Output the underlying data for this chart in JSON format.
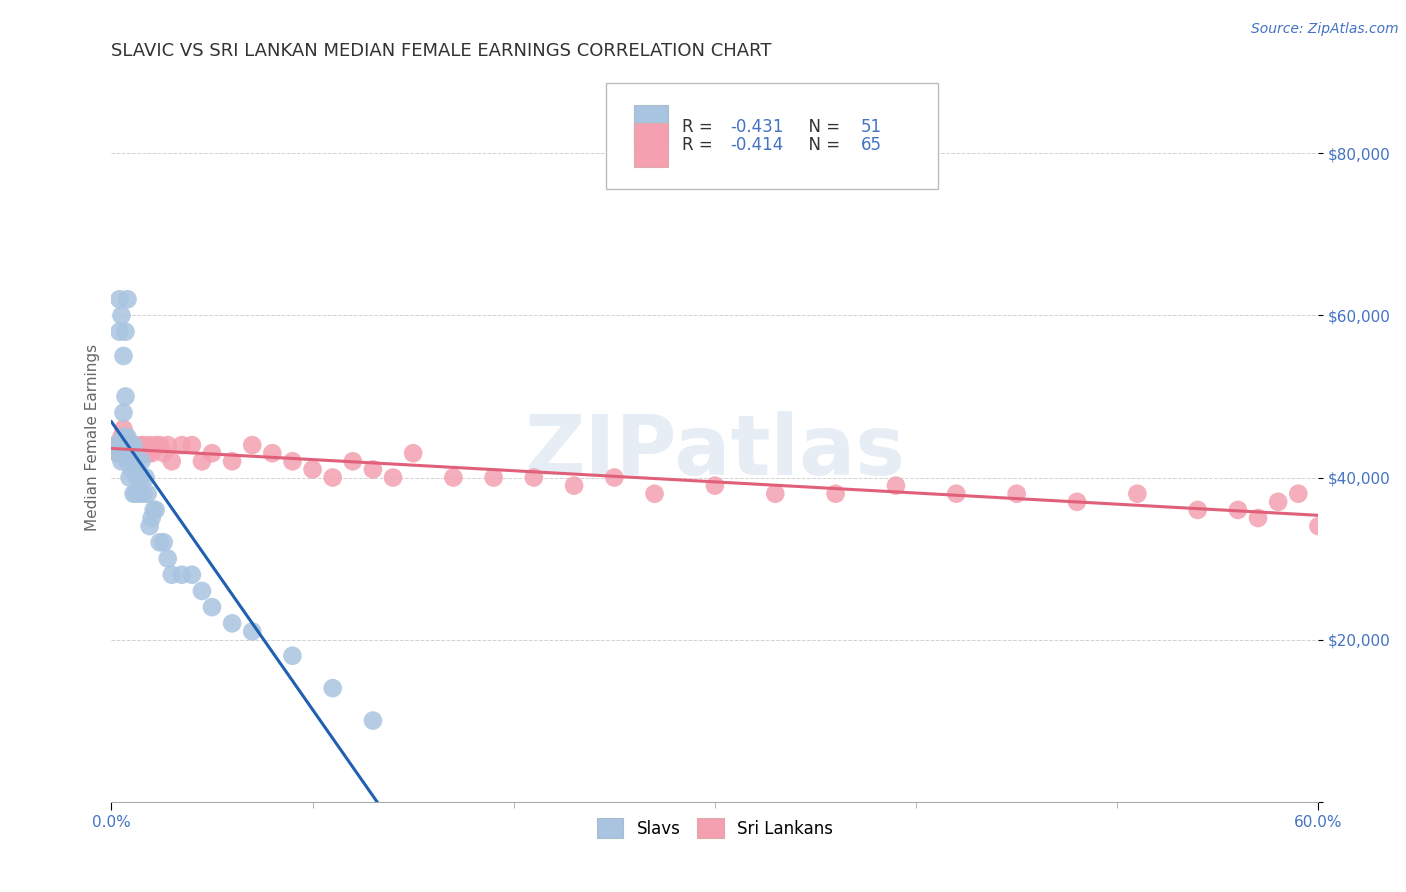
{
  "title": "SLAVIC VS SRI LANKAN MEDIAN FEMALE EARNINGS CORRELATION CHART",
  "source_text": "Source: ZipAtlas.com",
  "ylabel": "Median Female Earnings",
  "xlim": [
    0.0,
    0.6
  ],
  "ylim": [
    0,
    90000
  ],
  "yticks": [
    0,
    20000,
    40000,
    60000,
    80000
  ],
  "ytick_labels": [
    "",
    "$20,000",
    "$40,000",
    "$60,000",
    "$80,000"
  ],
  "xtick_labels_shown": [
    "0.0%",
    "60.0%"
  ],
  "xtick_positions_shown": [
    0.0,
    0.6
  ],
  "xtick_minor": [
    0.1,
    0.2,
    0.3,
    0.4,
    0.5
  ],
  "watermark_text": "ZIPatlas",
  "legend_R1": "-0.431",
  "legend_N1": "51",
  "legend_R2": "-0.414",
  "legend_N2": "65",
  "slavic_color": "#a8c4e0",
  "srilanka_color": "#f4a0b0",
  "slavic_line_color": "#2060b0",
  "srilanka_line_color": "#e0607a",
  "title_color": "#333333",
  "source_color": "#4472c4",
  "axis_label_color": "#666666",
  "tick_color": "#4472c4",
  "slavs_label": "Slavs",
  "srilankans_label": "Sri Lankans",
  "slavic_x": [
    0.002,
    0.003,
    0.004,
    0.004,
    0.005,
    0.005,
    0.005,
    0.006,
    0.006,
    0.006,
    0.007,
    0.007,
    0.007,
    0.008,
    0.008,
    0.008,
    0.009,
    0.009,
    0.009,
    0.01,
    0.01,
    0.01,
    0.011,
    0.011,
    0.012,
    0.012,
    0.013,
    0.013,
    0.014,
    0.015,
    0.015,
    0.016,
    0.017,
    0.018,
    0.019,
    0.02,
    0.021,
    0.022,
    0.024,
    0.026,
    0.028,
    0.03,
    0.035,
    0.04,
    0.045,
    0.05,
    0.06,
    0.07,
    0.09,
    0.11,
    0.13
  ],
  "slavic_y": [
    44000,
    43000,
    62000,
    58000,
    60000,
    44000,
    42000,
    48000,
    45000,
    55000,
    58000,
    50000,
    44000,
    45000,
    42000,
    62000,
    44000,
    42000,
    40000,
    43000,
    42000,
    41000,
    44000,
    38000,
    42000,
    38000,
    40000,
    42000,
    38000,
    40000,
    42000,
    38000,
    40000,
    38000,
    34000,
    35000,
    36000,
    36000,
    32000,
    32000,
    30000,
    28000,
    28000,
    28000,
    26000,
    24000,
    22000,
    21000,
    18000,
    14000,
    10000
  ],
  "srilanka_x": [
    0.002,
    0.003,
    0.004,
    0.005,
    0.005,
    0.006,
    0.006,
    0.007,
    0.007,
    0.008,
    0.008,
    0.009,
    0.009,
    0.01,
    0.01,
    0.011,
    0.011,
    0.012,
    0.013,
    0.014,
    0.015,
    0.016,
    0.017,
    0.018,
    0.019,
    0.02,
    0.022,
    0.024,
    0.026,
    0.028,
    0.03,
    0.035,
    0.04,
    0.045,
    0.05,
    0.06,
    0.07,
    0.08,
    0.09,
    0.1,
    0.11,
    0.12,
    0.13,
    0.14,
    0.15,
    0.17,
    0.19,
    0.21,
    0.23,
    0.25,
    0.27,
    0.3,
    0.33,
    0.36,
    0.39,
    0.42,
    0.45,
    0.48,
    0.51,
    0.54,
    0.56,
    0.57,
    0.58,
    0.59,
    0.6
  ],
  "srilanka_y": [
    44000,
    43000,
    44000,
    43000,
    45000,
    44000,
    46000,
    43000,
    45000,
    44000,
    43000,
    44000,
    43000,
    44000,
    43000,
    44000,
    42000,
    44000,
    43000,
    43000,
    44000,
    44000,
    43000,
    43000,
    44000,
    43000,
    44000,
    44000,
    43000,
    44000,
    42000,
    44000,
    44000,
    42000,
    43000,
    42000,
    44000,
    43000,
    42000,
    41000,
    40000,
    42000,
    41000,
    40000,
    43000,
    40000,
    40000,
    40000,
    39000,
    40000,
    38000,
    39000,
    38000,
    38000,
    39000,
    38000,
    38000,
    37000,
    38000,
    36000,
    36000,
    35000,
    37000,
    38000,
    34000
  ]
}
